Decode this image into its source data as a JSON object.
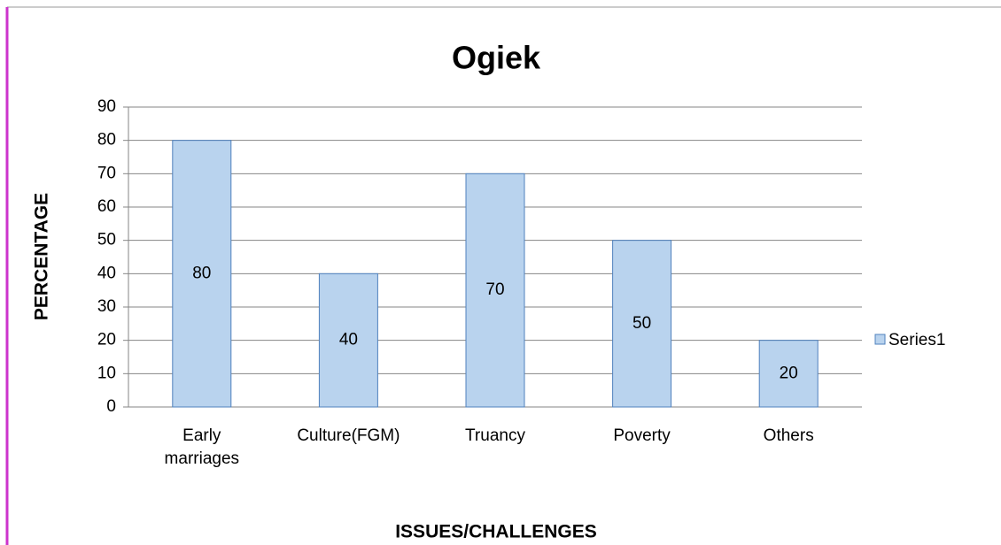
{
  "chart_data": {
    "type": "bar",
    "title": "Ogiek",
    "x_label": "ISSUES/CHALLENGES",
    "y_label": "PERCENTAGE",
    "categories": [
      "Early marriages",
      "Culture(FGM)",
      "Truancy",
      "Poverty",
      "Others"
    ],
    "series": [
      {
        "name": "Series1",
        "color": "#b9d3ee",
        "values": [
          80,
          40,
          70,
          50,
          20
        ]
      }
    ],
    "ylim": [
      0,
      90
    ],
    "yticks": [
      0,
      10,
      20,
      30,
      40,
      50,
      60,
      70,
      80,
      90
    ],
    "grid": true,
    "legend": "right"
  }
}
